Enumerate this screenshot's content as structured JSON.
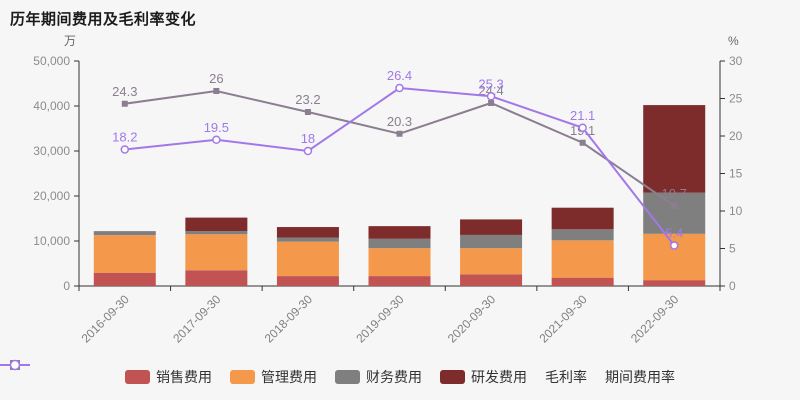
{
  "chart_data": {
    "type": "stacked-bar+line",
    "title": "历年期间费用及毛利率变化",
    "categories": [
      "2016-09-30",
      "2017-09-30",
      "2018-09-30",
      "2019-09-30",
      "2020-09-30",
      "2021-09-30",
      "2022-09-30"
    ],
    "bar_series": [
      {
        "id": "sales-expense",
        "name": "销售费用",
        "color": "#c15353",
        "values": [
          2950,
          3500,
          2200,
          2200,
          2600,
          1850,
          1300
        ]
      },
      {
        "id": "admin-expense",
        "name": "管理费用",
        "color": "#f4984c",
        "values": [
          8350,
          8000,
          7650,
          6200,
          5800,
          8300,
          10300
        ]
      },
      {
        "id": "finance-expense",
        "name": "财务费用",
        "color": "#7f7f7f",
        "values": [
          900,
          700,
          900,
          2100,
          2950,
          2450,
          9150
        ]
      },
      {
        "id": "rd-expense",
        "name": "研发费用",
        "color": "#7d2b2b",
        "values": [
          0,
          3000,
          2350,
          2800,
          3450,
          4800,
          19450
        ]
      }
    ],
    "line_series": [
      {
        "id": "gross-margin",
        "name": "毛利率",
        "color": "#8b7e90",
        "marker": "square",
        "values": [
          24.3,
          26,
          23.2,
          20.3,
          24.4,
          19.1,
          10.7
        ]
      },
      {
        "id": "expense-ratio",
        "name": "期间费用率",
        "color": "#a278e8",
        "marker": "circle-open",
        "values": [
          18.2,
          19.5,
          18,
          26.4,
          25.3,
          21.1,
          5.4
        ]
      }
    ],
    "left_axis": {
      "unit": "万",
      "min": 0,
      "max": 50000,
      "step": 10000
    },
    "right_axis": {
      "unit": "%",
      "min": 0,
      "max": 30,
      "step": 5
    },
    "legend_position": "bottom",
    "grid": "off"
  }
}
